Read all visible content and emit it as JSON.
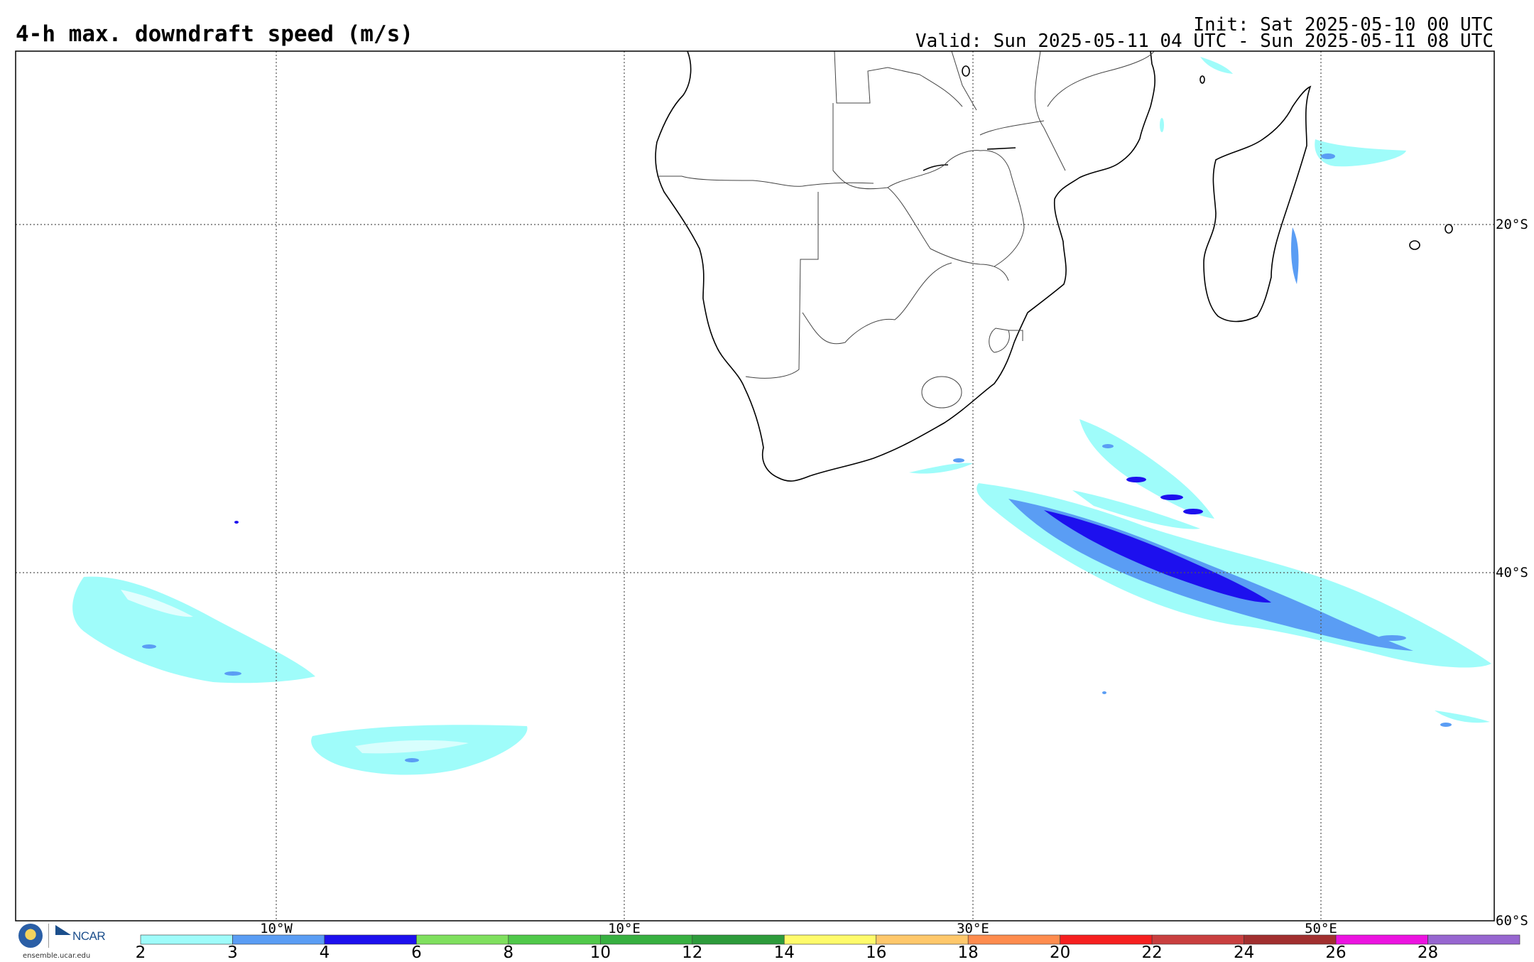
{
  "header": {
    "title": "4-h max. downdraft speed (m/s)",
    "init": "Init: Sat 2025-05-10 00 UTC",
    "valid": "Valid: Sun 2025-05-11 04 UTC - Sun 2025-05-11 08 UTC"
  },
  "map": {
    "lon_labels": [
      "10°W",
      "10°E",
      "30°E",
      "50°E"
    ],
    "lat_labels": [
      "20°S",
      "40°S",
      "60°S"
    ]
  },
  "colorbar": {
    "ticks": [
      "2",
      "3",
      "4",
      "6",
      "8",
      "10",
      "12",
      "14",
      "16",
      "18",
      "20",
      "22",
      "24",
      "26",
      "28"
    ],
    "colors": [
      "#9ffcfa",
      "#5a9df4",
      "#1d10ee",
      "#7fe05e",
      "#50c94a",
      "#37b040",
      "#2d9b3b",
      "#fffb6b",
      "#ffc86b",
      "#ff8c4e",
      "#f61f1f",
      "#c93f3f",
      "#a12f2f",
      "#ec13e0",
      "#9766d0"
    ]
  },
  "logo": {
    "org": "NCAR",
    "url": "ensemble.ucar.edu"
  }
}
